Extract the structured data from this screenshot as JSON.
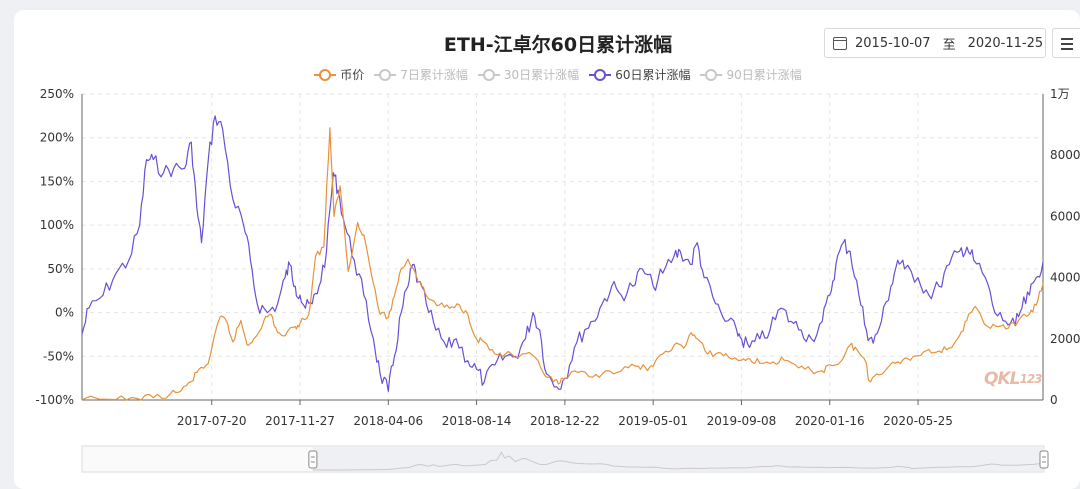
{
  "title": "ETH-江卓尔60日累计涨幅",
  "date_range": {
    "start": "2015-10-07",
    "sep": "至",
    "end": "2020-11-25"
  },
  "menu_icon": "hamburger-menu-icon",
  "calendar_icon": "calendar-icon",
  "watermark": "QKL123",
  "legend": [
    {
      "label": "币价",
      "color": "#e8923a",
      "active": true
    },
    {
      "label": "7日累计涨幅",
      "color": "#c8c8c8",
      "active": false
    },
    {
      "label": "30日累计涨幅",
      "color": "#c8c8c8",
      "active": false
    },
    {
      "label": "60日累计涨幅",
      "color": "#6a4fd6",
      "active": true
    },
    {
      "label": "90日累计涨幅",
      "color": "#c8c8c8",
      "active": false
    }
  ],
  "chart_data": {
    "type": "line",
    "x_tick_labels": [
      "2017-07-20",
      "2017-11-27",
      "2018-04-06",
      "2018-08-14",
      "2018-12-22",
      "2019-05-01",
      "2019-09-08",
      "2020-01-16",
      "2020-05-25"
    ],
    "x_range": [
      "2017-01-10",
      "2020-11-25"
    ],
    "y_left": {
      "ticks": [
        "250%",
        "200%",
        "150%",
        "100%",
        "50%",
        "0%",
        "-50%",
        "-100%"
      ],
      "range": [
        -100,
        250
      ],
      "unit": "%"
    },
    "y_right": {
      "ticks": [
        "1万",
        "8000",
        "6000",
        "4000",
        "2000",
        "0"
      ],
      "range": [
        0,
        10000
      ]
    },
    "grid": true,
    "series": [
      {
        "name": "60日累计涨幅",
        "axis": "left",
        "color": "#6a4fd6",
        "points": [
          [
            "2017-01-10",
            -25
          ],
          [
            "2017-01-20",
            5
          ],
          [
            "2017-02-10",
            20
          ],
          [
            "2017-03-01",
            45
          ],
          [
            "2017-03-20",
            60
          ],
          [
            "2017-04-05",
            100
          ],
          [
            "2017-04-15",
            175
          ],
          [
            "2017-04-25",
            175
          ],
          [
            "2017-05-10",
            160
          ],
          [
            "2017-05-25",
            165
          ],
          [
            "2017-06-10",
            165
          ],
          [
            "2017-06-20",
            195
          ],
          [
            "2017-06-28",
            120
          ],
          [
            "2017-07-05",
            80
          ],
          [
            "2017-07-15",
            175
          ],
          [
            "2017-07-25",
            225
          ],
          [
            "2017-08-05",
            210
          ],
          [
            "2017-08-20",
            130
          ],
          [
            "2017-09-05",
            100
          ],
          [
            "2017-09-15",
            60
          ],
          [
            "2017-09-25",
            10
          ],
          [
            "2017-10-10",
            0
          ],
          [
            "2017-10-25",
            10
          ],
          [
            "2017-11-05",
            40
          ],
          [
            "2017-11-12",
            55
          ],
          [
            "2017-11-20",
            30
          ],
          [
            "2017-11-27",
            20
          ],
          [
            "2017-12-05",
            5
          ],
          [
            "2017-12-15",
            10
          ],
          [
            "2017-12-25",
            30
          ],
          [
            "2018-01-05",
            70
          ],
          [
            "2018-01-15",
            160
          ],
          [
            "2018-01-22",
            140
          ],
          [
            "2018-02-01",
            100
          ],
          [
            "2018-02-15",
            60
          ],
          [
            "2018-03-01",
            20
          ],
          [
            "2018-03-15",
            -30
          ],
          [
            "2018-03-25",
            -70
          ],
          [
            "2018-04-06",
            -90
          ],
          [
            "2018-04-15",
            -50
          ],
          [
            "2018-04-25",
            0
          ],
          [
            "2018-05-05",
            30
          ],
          [
            "2018-05-12",
            55
          ],
          [
            "2018-05-20",
            35
          ],
          [
            "2018-06-01",
            10
          ],
          [
            "2018-06-15",
            -20
          ],
          [
            "2018-07-01",
            -40
          ],
          [
            "2018-07-15",
            -30
          ],
          [
            "2018-08-01",
            -55
          ],
          [
            "2018-08-14",
            -65
          ],
          [
            "2018-08-25",
            -80
          ],
          [
            "2018-09-10",
            -60
          ],
          [
            "2018-09-25",
            -50
          ],
          [
            "2018-10-10",
            -50
          ],
          [
            "2018-10-25",
            -30
          ],
          [
            "2018-11-05",
            0
          ],
          [
            "2018-11-15",
            -20
          ],
          [
            "2018-11-25",
            -70
          ],
          [
            "2018-12-10",
            -85
          ],
          [
            "2018-12-22",
            -75
          ],
          [
            "2019-01-05",
            -40
          ],
          [
            "2019-01-20",
            -20
          ],
          [
            "2019-02-01",
            -10
          ],
          [
            "2019-02-15",
            10
          ],
          [
            "2019-03-01",
            30
          ],
          [
            "2019-03-15",
            20
          ],
          [
            "2019-04-01",
            30
          ],
          [
            "2019-04-15",
            50
          ],
          [
            "2019-05-01",
            30
          ],
          [
            "2019-05-15",
            45
          ],
          [
            "2019-06-01",
            65
          ],
          [
            "2019-06-10",
            70
          ],
          [
            "2019-06-25",
            55
          ],
          [
            "2019-07-05",
            80
          ],
          [
            "2019-07-15",
            40
          ],
          [
            "2019-08-01",
            10
          ],
          [
            "2019-08-15",
            -10
          ],
          [
            "2019-09-01",
            -20
          ],
          [
            "2019-09-08",
            -30
          ],
          [
            "2019-09-20",
            -40
          ],
          [
            "2019-10-05",
            -30
          ],
          [
            "2019-10-20",
            -20
          ],
          [
            "2019-11-05",
            5
          ],
          [
            "2019-11-20",
            -10
          ],
          [
            "2019-12-05",
            -20
          ],
          [
            "2019-12-20",
            -30
          ],
          [
            "2020-01-05",
            -10
          ],
          [
            "2020-01-16",
            20
          ],
          [
            "2020-01-25",
            55
          ],
          [
            "2020-02-05",
            80
          ],
          [
            "2020-02-15",
            70
          ],
          [
            "2020-02-28",
            20
          ],
          [
            "2020-03-10",
            -20
          ],
          [
            "2020-03-20",
            -35
          ],
          [
            "2020-04-01",
            -10
          ],
          [
            "2020-04-15",
            30
          ],
          [
            "2020-04-25",
            60
          ],
          [
            "2020-05-05",
            50
          ],
          [
            "2020-05-25",
            40
          ],
          [
            "2020-06-10",
            20
          ],
          [
            "2020-06-25",
            30
          ],
          [
            "2020-07-10",
            55
          ],
          [
            "2020-07-25",
            70
          ],
          [
            "2020-08-05",
            75
          ],
          [
            "2020-08-15",
            60
          ],
          [
            "2020-09-01",
            40
          ],
          [
            "2020-09-15",
            0
          ],
          [
            "2020-10-01",
            -10
          ],
          [
            "2020-10-15",
            -15
          ],
          [
            "2020-10-25",
            5
          ],
          [
            "2020-11-05",
            20
          ],
          [
            "2020-11-15",
            40
          ],
          [
            "2020-11-25",
            58
          ]
        ]
      },
      {
        "name": "币价",
        "axis": "right",
        "color": "#e8923a",
        "points": [
          [
            "2017-01-10",
            10
          ],
          [
            "2017-03-01",
            15
          ],
          [
            "2017-04-01",
            50
          ],
          [
            "2017-04-25",
            80
          ],
          [
            "2017-05-20",
            200
          ],
          [
            "2017-06-05",
            300
          ],
          [
            "2017-06-20",
            600
          ],
          [
            "2017-07-01",
            1000
          ],
          [
            "2017-07-15",
            1200
          ],
          [
            "2017-08-01",
            2700
          ],
          [
            "2017-08-10",
            2600
          ],
          [
            "2017-08-20",
            1900
          ],
          [
            "2017-09-01",
            2600
          ],
          [
            "2017-09-10",
            1800
          ],
          [
            "2017-09-20",
            2000
          ],
          [
            "2017-10-05",
            2600
          ],
          [
            "2017-10-15",
            2800
          ],
          [
            "2017-10-25",
            2200
          ],
          [
            "2017-11-05",
            2100
          ],
          [
            "2017-11-20",
            2400
          ],
          [
            "2017-11-27",
            2500
          ],
          [
            "2017-12-10",
            2800
          ],
          [
            "2017-12-20",
            4700
          ],
          [
            "2018-01-01",
            5000
          ],
          [
            "2018-01-10",
            8900
          ],
          [
            "2018-01-16",
            6000
          ],
          [
            "2018-01-25",
            7000
          ],
          [
            "2018-02-06",
            4200
          ],
          [
            "2018-02-20",
            5800
          ],
          [
            "2018-03-01",
            5400
          ],
          [
            "2018-03-15",
            3800
          ],
          [
            "2018-03-25",
            2800
          ],
          [
            "2018-04-06",
            2700
          ],
          [
            "2018-04-15",
            3400
          ],
          [
            "2018-04-25",
            4300
          ],
          [
            "2018-05-05",
            4600
          ],
          [
            "2018-05-15",
            4200
          ],
          [
            "2018-05-25",
            3700
          ],
          [
            "2018-06-05",
            3300
          ],
          [
            "2018-06-20",
            3100
          ],
          [
            "2018-07-05",
            3000
          ],
          [
            "2018-07-20",
            3100
          ],
          [
            "2018-08-01",
            2800
          ],
          [
            "2018-08-14",
            2000
          ],
          [
            "2018-08-25",
            1900
          ],
          [
            "2018-09-10",
            1500
          ],
          [
            "2018-09-25",
            1500
          ],
          [
            "2018-10-15",
            1400
          ],
          [
            "2018-11-05",
            1450
          ],
          [
            "2018-11-20",
            900
          ],
          [
            "2018-12-05",
            600
          ],
          [
            "2018-12-15",
            560
          ],
          [
            "2018-12-22",
            700
          ],
          [
            "2019-01-10",
            900
          ],
          [
            "2019-02-01",
            750
          ],
          [
            "2019-02-20",
            950
          ],
          [
            "2019-03-15",
            950
          ],
          [
            "2019-04-05",
            1100
          ],
          [
            "2019-04-20",
            1050
          ],
          [
            "2019-05-01",
            1100
          ],
          [
            "2019-05-15",
            1500
          ],
          [
            "2019-06-01",
            1800
          ],
          [
            "2019-06-15",
            1700
          ],
          [
            "2019-06-26",
            2200
          ],
          [
            "2019-07-05",
            2000
          ],
          [
            "2019-07-20",
            1500
          ],
          [
            "2019-08-05",
            1550
          ],
          [
            "2019-08-20",
            1400
          ],
          [
            "2019-09-08",
            1300
          ],
          [
            "2019-09-20",
            1350
          ],
          [
            "2019-10-05",
            1200
          ],
          [
            "2019-10-25",
            1250
          ],
          [
            "2019-11-10",
            1300
          ],
          [
            "2019-12-01",
            1050
          ],
          [
            "2019-12-20",
            950
          ],
          [
            "2020-01-05",
            950
          ],
          [
            "2020-01-16",
            1150
          ],
          [
            "2020-02-01",
            1250
          ],
          [
            "2020-02-15",
            1800
          ],
          [
            "2020-02-25",
            1650
          ],
          [
            "2020-03-10",
            1200
          ],
          [
            "2020-03-13",
            650
          ],
          [
            "2020-03-25",
            850
          ],
          [
            "2020-04-10",
            1050
          ],
          [
            "2020-04-25",
            1250
          ],
          [
            "2020-05-10",
            1350
          ],
          [
            "2020-05-25",
            1450
          ],
          [
            "2020-06-10",
            1650
          ],
          [
            "2020-06-25",
            1600
          ],
          [
            "2020-07-10",
            1700
          ],
          [
            "2020-07-25",
            2100
          ],
          [
            "2020-08-05",
            2600
          ],
          [
            "2020-08-15",
            3000
          ],
          [
            "2020-08-25",
            2800
          ],
          [
            "2020-09-05",
            2400
          ],
          [
            "2020-09-20",
            2400
          ],
          [
            "2020-10-05",
            2350
          ],
          [
            "2020-10-20",
            2600
          ],
          [
            "2020-11-05",
            2800
          ],
          [
            "2020-11-15",
            3100
          ],
          [
            "2020-11-25",
            3800
          ]
        ]
      }
    ],
    "zoom_slider": {
      "start": 0.24,
      "end": 1.0
    }
  }
}
